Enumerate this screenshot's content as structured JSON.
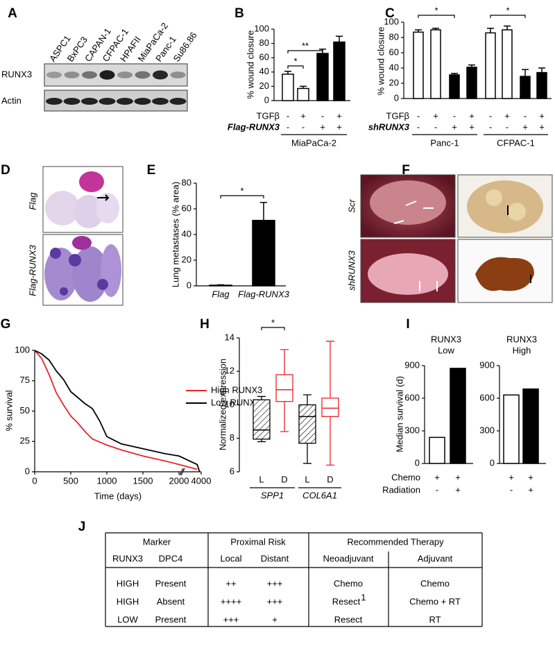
{
  "panel_labels": [
    "A",
    "B",
    "C",
    "D",
    "E",
    "F",
    "G",
    "H",
    "I",
    "J"
  ],
  "blot": {
    "lanes": [
      "ASPC1",
      "BxPC3",
      "CAPAN-1",
      "CFPAC-1",
      "HPAFII",
      "MiaPaCa-2",
      "Panc-1",
      "Su86.86"
    ],
    "rows": [
      "RUNX3",
      "Actin"
    ]
  },
  "histology": {
    "rows": [
      "Flag",
      "Flag-RUNX3"
    ]
  },
  "photos": {
    "rows": [
      "Scr",
      "shRUNX3"
    ]
  },
  "chart_data": [
    {
      "type": "bar",
      "ylabel": "% wound closure",
      "ylim": [
        0,
        100
      ],
      "yticks": [
        0,
        20,
        40,
        60,
        80,
        100
      ],
      "values": [
        37,
        17,
        66,
        82
      ],
      "errors": [
        4,
        3,
        6,
        8
      ],
      "colors": [
        "#ffffff",
        "#ffffff",
        "#000000",
        "#000000"
      ],
      "conditions": [
        {
          "name": "TGFβ",
          "values": [
            "-",
            "+",
            "-",
            "+"
          ]
        },
        {
          "name": "Flag-RUNX3",
          "values": [
            "-",
            "-",
            "+",
            "+"
          ]
        }
      ],
      "groups": [
        "MiaPaCa-2"
      ],
      "annotations": [
        "*",
        "**"
      ]
    },
    {
      "type": "bar",
      "ylabel": "% wound closure",
      "ylim": [
        0,
        100
      ],
      "yticks": [
        0,
        20,
        40,
        60,
        80,
        100
      ],
      "values": [
        87,
        90,
        31,
        41,
        86,
        90,
        29,
        34
      ],
      "errors": [
        3,
        2,
        2,
        3,
        6,
        5,
        9,
        6
      ],
      "colors": [
        "#ffffff",
        "#ffffff",
        "#000000",
        "#000000",
        "#ffffff",
        "#ffffff",
        "#000000",
        "#000000"
      ],
      "conditions": [
        {
          "name": "TGFβ",
          "values": [
            "-",
            "+",
            "-",
            "+",
            "-",
            "+",
            "-",
            "+"
          ]
        },
        {
          "name": "shRUNX3",
          "values": [
            "-",
            "-",
            "+",
            "+",
            "-",
            "-",
            "+",
            "+"
          ]
        }
      ],
      "groups": [
        "Panc-1",
        "CFPAC-1"
      ],
      "annotations": [
        "*",
        "*"
      ]
    },
    {
      "type": "bar",
      "ylabel": "Lung metastases (% area)",
      "ylim": [
        0,
        80
      ],
      "yticks": [
        0,
        20,
        40,
        60,
        80
      ],
      "categories": [
        "Flag",
        "Flag-RUNX3"
      ],
      "values": [
        0.5,
        51
      ],
      "errors": [
        0.3,
        14
      ],
      "colors": [
        "#000000",
        "#000000"
      ],
      "annotations": [
        "*"
      ]
    },
    {
      "type": "line",
      "xlabel": "Time (days)",
      "ylabel": "% survival",
      "xlim": [
        0,
        4000
      ],
      "ylim": [
        0,
        100
      ],
      "xticks": [
        0,
        500,
        1000,
        1500,
        2000,
        4000
      ],
      "yticks": [
        0,
        25,
        50,
        75,
        100
      ],
      "legend": "right",
      "series": [
        {
          "name": "High RUNX3",
          "color": "#e8242b",
          "x": [
            0,
            100,
            200,
            300,
            400,
            500,
            600,
            700,
            800,
            1000,
            1200,
            1500,
            1800,
            2000,
            3500
          ],
          "values": [
            100,
            93,
            80,
            65,
            55,
            46,
            40,
            33,
            27,
            22,
            18,
            13,
            9,
            6,
            2
          ]
        },
        {
          "name": "Low RUNX3",
          "color": "#000000",
          "x": [
            0,
            100,
            200,
            300,
            400,
            500,
            600,
            700,
            800,
            900,
            1000,
            1200,
            1500,
            1800,
            2000,
            3500,
            3800
          ],
          "values": [
            100,
            97,
            92,
            83,
            76,
            66,
            61,
            56,
            52,
            42,
            29,
            23,
            19,
            15,
            13,
            6,
            0
          ]
        }
      ]
    },
    {
      "type": "box",
      "ylabel": "Normalized expression",
      "ylim": [
        6,
        14
      ],
      "yticks": [
        6,
        8,
        10,
        12,
        14
      ],
      "categories": [
        "L",
        "D",
        "L",
        "D"
      ],
      "groups": [
        "SPP1",
        "COL6A1"
      ],
      "colors": [
        "#000000",
        "#e8242b",
        "#000000",
        "#e8242b"
      ],
      "hatch": [
        true,
        false,
        true,
        false
      ],
      "boxes": [
        {
          "min": 7.8,
          "q1": 7.95,
          "median": 8.5,
          "q3": 10.3,
          "max": 10.5
        },
        {
          "min": 8.4,
          "q1": 10.2,
          "median": 10.9,
          "q3": 11.8,
          "max": 13.3
        },
        {
          "min": 6.5,
          "q1": 7.7,
          "median": 9.3,
          "q3": 10.0,
          "max": 10.6
        },
        {
          "min": 6.4,
          "q1": 9.3,
          "median": 9.8,
          "q3": 10.4,
          "max": 13.8
        }
      ],
      "annotations": [
        "*"
      ]
    },
    {
      "type": "bar",
      "title": [
        "RUNX3",
        "Low"
      ],
      "ylabel": "Median survival (d)",
      "ylim": [
        0,
        900
      ],
      "yticks": [
        0,
        300,
        600,
        900
      ],
      "values": [
        240,
        875
      ],
      "colors": [
        "#ffffff",
        "#000000"
      ],
      "conditions": [
        {
          "name": "Chemo",
          "values": [
            "+",
            "+"
          ]
        },
        {
          "name": "Radiation",
          "values": [
            "-",
            "+"
          ]
        }
      ]
    },
    {
      "type": "bar",
      "title": [
        "RUNX3",
        "High"
      ],
      "ylim": [
        0,
        900
      ],
      "yticks": [
        0,
        300,
        600,
        900
      ],
      "values": [
        630,
        685
      ],
      "colors": [
        "#ffffff",
        "#000000"
      ],
      "conditions": [
        {
          "values": [
            "+",
            "+"
          ]
        },
        {
          "values": [
            "-",
            "+"
          ]
        }
      ]
    }
  ],
  "table": {
    "group_headers": [
      "Marker",
      "Proximal Risk",
      "Recommended Therapy"
    ],
    "headers": [
      "RUNX3",
      "DPC4",
      "Local",
      "Distant",
      "Neoadjuvant",
      "Adjuvant"
    ],
    "rows": [
      {
        "color": "#2e3192",
        "cells": [
          "HIGH",
          "Present",
          "++",
          "+++",
          "Chemo",
          "Chemo"
        ]
      },
      {
        "color": "#1b7a3e",
        "cells": [
          "HIGH",
          "Absent",
          "++++",
          "+++",
          {
            "text": "Resect",
            "sup": "1"
          },
          "Chemo + RT"
        ]
      },
      {
        "color": "#e8242b",
        "cells": [
          "LOW",
          "Present",
          "+++",
          "+",
          "Resect",
          "RT"
        ]
      }
    ]
  }
}
